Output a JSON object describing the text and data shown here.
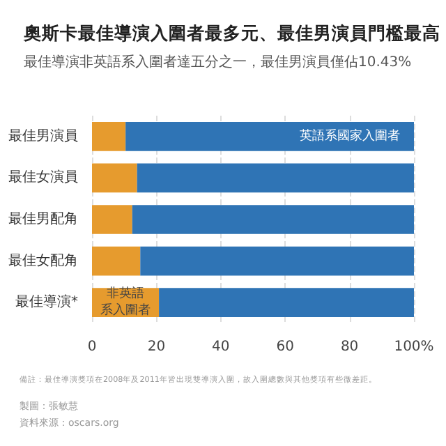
{
  "chart_data": {
    "type": "bar",
    "orientation": "horizontal",
    "stacked": true,
    "title": "奧斯卡最佳導演入圍者最多元、最佳男演員門檻最高",
    "subtitle": "最佳導演非英語系入圍者達五分之一，最佳男演員僅佔10.43%",
    "categories": [
      "最佳男演員",
      "最佳女演員",
      "最佳男配角",
      "最佳女配角",
      "最佳導演*"
    ],
    "series": [
      {
        "name": "非英語系入圍者",
        "color": "#e69b2e",
        "values": [
          10.43,
          14,
          12.5,
          15,
          20.8
        ]
      },
      {
        "name": "英語系國家入圍者",
        "color": "#2f74b5",
        "values": [
          89.57,
          86,
          87.5,
          85,
          79.2
        ]
      }
    ],
    "xlim": [
      0,
      100
    ],
    "xticks": [
      0,
      20,
      40,
      60,
      80,
      {
        "value": 100,
        "label": "100%"
      }
    ],
    "grid": "x",
    "legend": false,
    "annotations": [
      "備註：最佳導演獎項在2008年及2011年皆出現雙導演入圍，故入圍總數與其他獎項有些微差距。",
      "製圖：張敏慧",
      "資料來源：oscars.org"
    ]
  }
}
